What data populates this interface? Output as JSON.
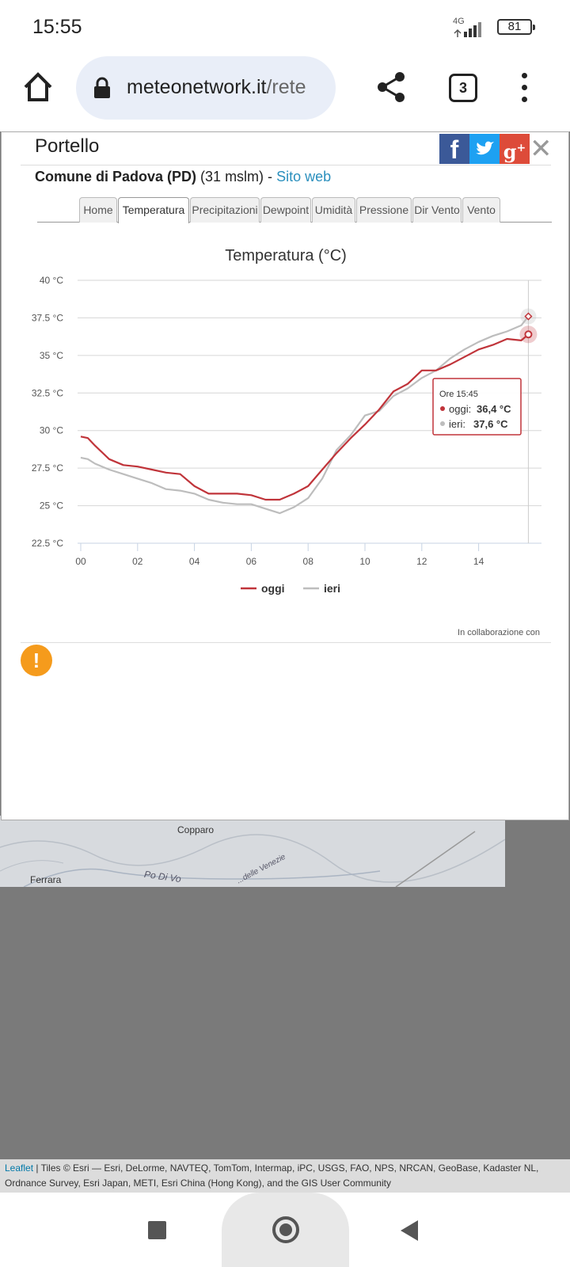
{
  "status": {
    "time": "15:55",
    "network": "4G",
    "battery": "81"
  },
  "browser": {
    "url_host": "meteonetwork.it",
    "url_path": "/rete",
    "tab_count": "3"
  },
  "popup": {
    "station_name": "Portello",
    "comune": "Comune di Padova (PD)",
    "altitude": "(31 mslm) -",
    "site_link": "Sito web",
    "tabs": [
      "Home",
      "Temperatura",
      "Precipitazioni",
      "Dewpoint",
      "Umidità",
      "Pressione",
      "Dir Vento",
      "Vento"
    ],
    "active_tab": "Temperatura",
    "collab": "In collaborazione con"
  },
  "chart_data": {
    "type": "line",
    "title": "Temperatura (°C)",
    "x_ticks": [
      "00",
      "02",
      "04",
      "06",
      "08",
      "10",
      "12",
      "14"
    ],
    "y_ticks": [
      "22.5 °C",
      "25 °C",
      "27.5 °C",
      "30 °C",
      "32.5 °C",
      "35 °C",
      "37.5 °C",
      "40 °C"
    ],
    "ylim": [
      22.5,
      40
    ],
    "xlim": [
      0,
      15.75
    ],
    "legend_position": "bottom-center",
    "series": [
      {
        "name": "oggi",
        "color": "#c0343a",
        "x": [
          0,
          0.25,
          0.5,
          1,
          1.5,
          2,
          2.5,
          3,
          3.5,
          4,
          4.5,
          5,
          5.5,
          6,
          6.5,
          7,
          7.5,
          8,
          8.5,
          9,
          9.5,
          10,
          10.5,
          11,
          11.5,
          12,
          12.5,
          13,
          13.5,
          14,
          14.5,
          15,
          15.5,
          15.75
        ],
        "y": [
          29.6,
          29.5,
          29.0,
          28.1,
          27.7,
          27.6,
          27.4,
          27.2,
          27.1,
          26.3,
          25.8,
          25.8,
          25.8,
          25.7,
          25.4,
          25.4,
          25.8,
          26.3,
          27.4,
          28.5,
          29.5,
          30.4,
          31.4,
          32.6,
          33.1,
          34.0,
          34.0,
          34.4,
          34.9,
          35.4,
          35.7,
          36.1,
          36.0,
          36.4
        ]
      },
      {
        "name": "ieri",
        "color": "#bdbdbd",
        "x": [
          0,
          0.25,
          0.5,
          1,
          1.5,
          2,
          2.5,
          3,
          3.5,
          4,
          4.5,
          5,
          5.5,
          6,
          6.5,
          7,
          7.5,
          8,
          8.5,
          9,
          9.5,
          10,
          10.5,
          11,
          11.5,
          12,
          12.5,
          13,
          13.5,
          14,
          14.5,
          15,
          15.5,
          15.75
        ],
        "y": [
          28.2,
          28.1,
          27.8,
          27.4,
          27.1,
          26.8,
          26.5,
          26.1,
          26.0,
          25.8,
          25.4,
          25.2,
          25.1,
          25.1,
          24.8,
          24.5,
          24.9,
          25.5,
          26.8,
          28.7,
          29.7,
          31.0,
          31.3,
          32.3,
          32.8,
          33.5,
          34.0,
          34.8,
          35.4,
          35.9,
          36.3,
          36.6,
          37.0,
          37.6
        ]
      }
    ],
    "tooltip": {
      "header": "Ore 15:45",
      "lines": [
        {
          "label": "oggi:",
          "value": "36,4 °C"
        },
        {
          "label": "ieri:",
          "value": "37,6 °C"
        }
      ]
    }
  },
  "map": {
    "labels": [
      "Copparo",
      "Ferrara",
      "Po Di Vo",
      "...delle Venezie"
    ]
  },
  "attribution": {
    "leaflet": "Leaflet",
    "text": " | Tiles © Esri — Esri, DeLorme, NAVTEQ, TomTom, Intermap, iPC, USGS, FAO, NPS, NRCAN, GeoBase, Kadaster NL, Ordnance Survey, Esri Japan, METI, Esri China (Hong Kong), and the GIS User Community"
  },
  "colors": {
    "accent_link": "#2a8fbd",
    "facebook": "#3b5998",
    "twitter": "#1da1f2",
    "googleplus": "#dd4b39",
    "warning": "#f59b1c"
  }
}
